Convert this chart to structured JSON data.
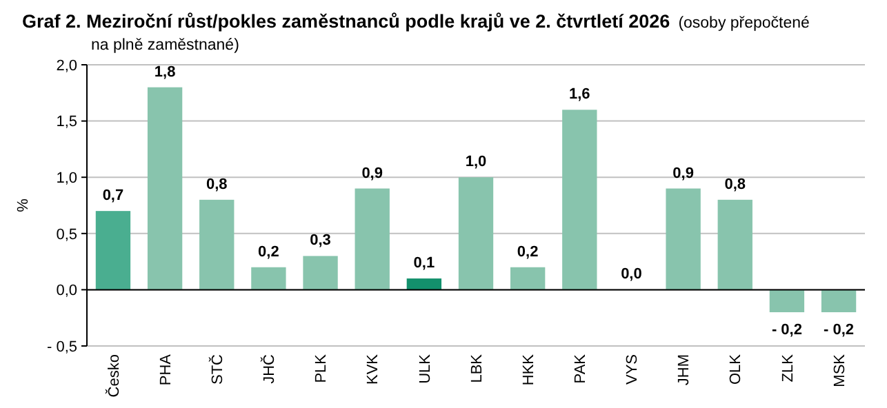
{
  "chart_data": {
    "type": "bar",
    "title": "Graf 2. Meziroční růst/pokles  zaměstnanců podle krajů ve 2. čtvrtletí 2026",
    "subtitle": "(osoby přepočtené na plně zaměstnané)",
    "ylabel": "%",
    "categories": [
      "Česko",
      "PHA",
      "STČ",
      "JHČ",
      "PLK",
      "KVK",
      "ULK",
      "LBK",
      "HKK",
      "PAK",
      "VYS",
      "JHM",
      "OLK",
      "ZLK",
      "MSK"
    ],
    "values": [
      0.7,
      1.8,
      0.8,
      0.2,
      0.3,
      0.9,
      0.1,
      1.0,
      0.2,
      1.6,
      0.0,
      0.9,
      0.8,
      -0.2,
      -0.2
    ],
    "colors": [
      "#4aae90",
      "#88c4ad",
      "#88c4ad",
      "#88c4ad",
      "#88c4ad",
      "#88c4ad",
      "#13906c",
      "#88c4ad",
      "#88c4ad",
      "#88c4ad",
      "#88c4ad",
      "#88c4ad",
      "#88c4ad",
      "#88c4ad",
      "#88c4ad"
    ],
    "value_labels": [
      "0,7",
      "1,8",
      "0,8",
      "0,2",
      "0,3",
      "0,9",
      "0,1",
      "1,0",
      "0,2",
      "1,6",
      "0,0",
      "0,9",
      "0,8",
      "- 0,2",
      "- 0,2"
    ],
    "ylim": [
      -0.5,
      2
    ],
    "yticks": [
      {
        "value": -0.5,
        "label": "- 0,5"
      },
      {
        "value": 0,
        "label": "0,0"
      },
      {
        "value": 0.5,
        "label": "0,5"
      },
      {
        "value": 1,
        "label": "1,0"
      },
      {
        "value": 1.5,
        "label": "1,5"
      },
      {
        "value": 2,
        "label": "2,0"
      }
    ],
    "grid": "y"
  }
}
